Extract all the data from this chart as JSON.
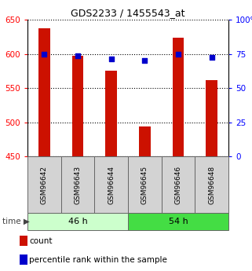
{
  "title": "GDS2233 / 1455543_at",
  "categories": [
    "GSM96642",
    "GSM96643",
    "GSM96644",
    "GSM96645",
    "GSM96646",
    "GSM96648"
  ],
  "bar_values": [
    638,
    597,
    576,
    494,
    624,
    562
  ],
  "percentile_values": [
    75.0,
    73.5,
    71.5,
    70.5,
    75.0,
    72.5
  ],
  "bar_color": "#cc1100",
  "dot_color": "#0000cc",
  "ylim_left": [
    450,
    650
  ],
  "ylim_right": [
    0,
    100
  ],
  "yticks_left": [
    450,
    500,
    550,
    600,
    650
  ],
  "yticks_right": [
    0,
    25,
    50,
    75,
    100
  ],
  "yticklabels_right": [
    "0",
    "25",
    "50",
    "75",
    "100%"
  ],
  "group_46h_color": "#ccffcc",
  "group_54h_color": "#44dd44",
  "legend_bar_label": "count",
  "legend_dot_label": "percentile rank within the sample",
  "bar_width": 0.35,
  "background_color": "#ffffff"
}
